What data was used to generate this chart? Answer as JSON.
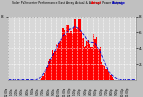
{
  "title": "Solar PV/Inverter Performance East Array Actual & Average Power Output",
  "bg_color": "#c0c0c0",
  "plot_bg_color": "#d8d8d8",
  "grid_color": "#ffffff",
  "bar_color": "#ff0000",
  "avg_line_color": "#0000cc",
  "ylim": [
    0,
    8
  ],
  "num_bars": 96,
  "title_color": "#000000",
  "tick_color": "#000000",
  "yticks": [
    2,
    4,
    6,
    8
  ],
  "ytick_labels": [
    "2.",
    "4.",
    "6.",
    "8."
  ],
  "time_labels": [
    "12:00a",
    "1:00a",
    "2:00a",
    "3:00a",
    "4:00a",
    "5:00a",
    "6:00a",
    "7:00a",
    "8:00a",
    "9:00a",
    "10:00a",
    "11:00a",
    "12:00p",
    "1:00p",
    "2:00p",
    "3:00p",
    "4:00p",
    "5:00p",
    "6:00p",
    "7:00p",
    "8:00p",
    "9:00p",
    "10:00p",
    "11:00p",
    ""
  ],
  "legend_actual_color": "#ff0000",
  "legend_avg_color": "#0000cc",
  "legend_actual_label": "Actual",
  "legend_avg_label": "Average"
}
